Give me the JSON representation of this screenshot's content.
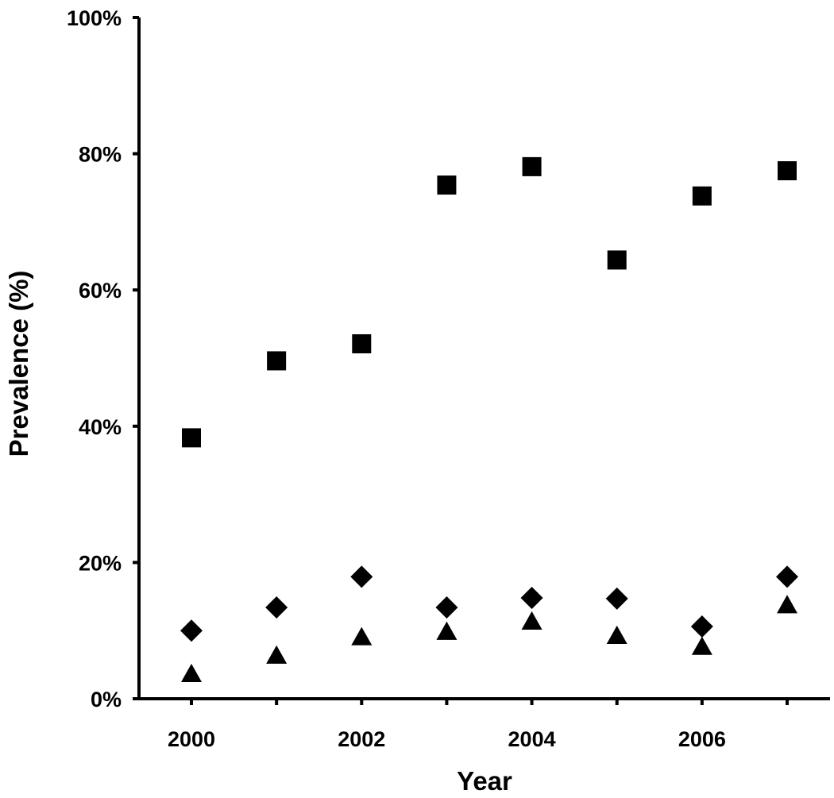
{
  "chart_data": {
    "type": "scatter",
    "title": "",
    "xlabel": "Year",
    "ylabel": "Prevalence (%)",
    "xlim": [
      1999.5,
      2007.5
    ],
    "ylim": [
      0,
      100
    ],
    "x_ticks": [
      2000,
      2002,
      2004,
      2006
    ],
    "x_tick_labels": [
      "2000",
      "2002",
      "2004",
      "2006"
    ],
    "y_ticks": [
      0,
      20,
      40,
      60,
      80,
      100
    ],
    "y_tick_labels": [
      "0%",
      "20%",
      "40%",
      "60%",
      "80%",
      "100%"
    ],
    "grid": false,
    "legend": "none",
    "x": [
      2000,
      2001,
      2002,
      2003,
      2004,
      2005,
      2006,
      2007
    ],
    "series": [
      {
        "marker": "square",
        "color": "#000000",
        "values": [
          38.3,
          49.6,
          52.1,
          75.4,
          78.1,
          64.4,
          73.8,
          77.5
        ]
      },
      {
        "marker": "diamond",
        "color": "#000000",
        "values": [
          10.0,
          13.4,
          17.9,
          13.4,
          14.8,
          14.7,
          10.6,
          17.9
        ]
      },
      {
        "marker": "triangle",
        "color": "#000000",
        "values": [
          3.6,
          6.3,
          9.0,
          9.8,
          11.3,
          9.2,
          7.6,
          13.7
        ]
      }
    ]
  }
}
